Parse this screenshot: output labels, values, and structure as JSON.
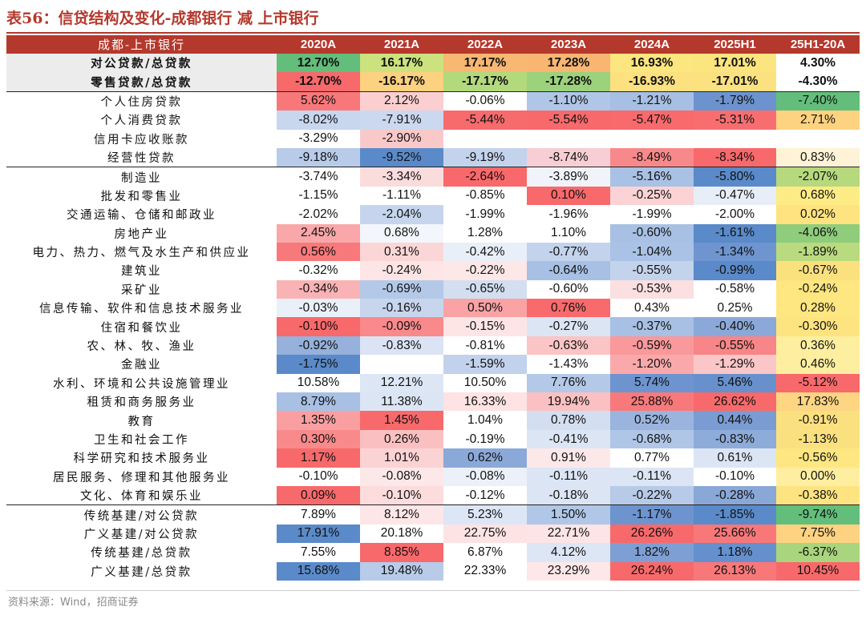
{
  "title": "表56：信贷结构及变化-成都银行 减 上市银行",
  "header": [
    "成都-上市银行",
    "2020A",
    "2021A",
    "2022A",
    "2023A",
    "2024A",
    "2025H1",
    "25H1-20A"
  ],
  "rows": [
    {
      "label": "对公贷款/总贷款",
      "values": [
        "12.70%",
        "16.17%",
        "17.17%",
        "17.28%",
        "16.93%",
        "17.01%",
        "4.30%"
      ],
      "colors": [
        "#63be7b",
        "#cbe27e",
        "#f8b772",
        "#f9b673",
        "#fce67f",
        "#fbe57f",
        "#ffffff"
      ],
      "summary": true
    },
    {
      "label": "零售贷款/总贷款",
      "values": [
        "-12.70%",
        "-16.17%",
        "-17.17%",
        "-17.28%",
        "-16.93%",
        "-17.01%",
        "-4.30%"
      ],
      "colors": [
        "#f8696b",
        "#fcd17f",
        "#b3d97d",
        "#9dd27c",
        "#fde07f",
        "#fce180",
        "#ffffff"
      ],
      "summary": true
    },
    {
      "label": "个人住房贷款",
      "values": [
        "5.62%",
        "2.12%",
        "-0.06%",
        "-1.10%",
        "-1.21%",
        "-1.79%",
        "-7.40%"
      ],
      "colors": [
        "#f8787a",
        "#fbcfd0",
        "#ffffff",
        "#b0c6e7",
        "#a6bfe3",
        "#6d93cf",
        "#63be7b"
      ],
      "sep": true
    },
    {
      "label": "个人消费贷款",
      "values": [
        "-8.02%",
        "-7.91%",
        "-5.44%",
        "-5.54%",
        "-5.47%",
        "-5.31%",
        "2.71%"
      ],
      "colors": [
        "#c8d6ee",
        "#cbd8ef",
        "#f86b6d",
        "#f8696b",
        "#f86a6c",
        "#f86e70",
        "#fdd280"
      ]
    },
    {
      "label": "信用卡应收账款",
      "values": [
        "-3.29%",
        "-2.90%",
        "",
        "",
        "",
        "",
        ""
      ],
      "colors": [
        "#ffffff",
        "#f9c9ca",
        "#ffffff",
        "#ffffff",
        "#ffffff",
        "#ffffff",
        "#ffffff"
      ]
    },
    {
      "label": "经营性贷款",
      "values": [
        "-9.18%",
        "-9.52%",
        "-9.19%",
        "-8.74%",
        "-8.49%",
        "-8.34%",
        "0.83%"
      ],
      "colors": [
        "#b8cbe9",
        "#5a8ac9",
        "#c4d3ec",
        "#f6ced3",
        "#f8898b",
        "#f8696b",
        "#fef3d6"
      ]
    },
    {
      "label": "制造业",
      "values": [
        "-3.74%",
        "-3.34%",
        "-2.64%",
        "-3.89%",
        "-5.16%",
        "-5.80%",
        "-2.07%"
      ],
      "colors": [
        "#ffffff",
        "#fbdcdd",
        "#f8696b",
        "#f0f4fa",
        "#a9c1e4",
        "#5a8ac9",
        "#b6d97d"
      ],
      "sep": true
    },
    {
      "label": "批发和零售业",
      "values": [
        "-1.15%",
        "-1.11%",
        "-0.85%",
        "0.10%",
        "-0.25%",
        "-0.47%",
        "0.68%"
      ],
      "colors": [
        "#ffffff",
        "#ffffff",
        "#ffffff",
        "#f8696b",
        "#fbd3d4",
        "#e8eef8",
        "#fdec85"
      ]
    },
    {
      "label": "交通运输、仓储和邮政业",
      "values": [
        "-2.02%",
        "-2.04%",
        "-1.99%",
        "-1.96%",
        "-1.99%",
        "-2.00%",
        "0.02%"
      ],
      "colors": [
        "#ffffff",
        "#c6d5ed",
        "#ffffff",
        "#ffffff",
        "#ffffff",
        "#ffffff",
        "#fee380"
      ]
    },
    {
      "label": "房地产业",
      "values": [
        "2.45%",
        "0.68%",
        "1.28%",
        "1.10%",
        "-0.60%",
        "-1.61%",
        "-4.06%"
      ],
      "colors": [
        "#f9a7a9",
        "#f3f6fb",
        "#ffffff",
        "#ffffff",
        "#a7c0e4",
        "#5a8ac9",
        "#8fcd7c"
      ]
    },
    {
      "label": "电力、热力、燃气及水生产和供应业",
      "values": [
        "0.56%",
        "0.31%",
        "-0.42%",
        "-0.77%",
        "-1.04%",
        "-1.34%",
        "-1.89%"
      ],
      "colors": [
        "#f8797b",
        "#fbd6d7",
        "#e9eff8",
        "#c3d3ec",
        "#aac2e5",
        "#6f95d0",
        "#b9da7e"
      ]
    },
    {
      "label": "建筑业",
      "values": [
        "-0.32%",
        "-0.24%",
        "-0.22%",
        "-0.64%",
        "-0.55%",
        "-0.99%",
        "-0.67%"
      ],
      "colors": [
        "#ffffff",
        "#fde5e6",
        "#fde7e7",
        "#a7c0e4",
        "#c4d3ec",
        "#5a8ac9",
        "#fbe07e"
      ]
    },
    {
      "label": "采矿业",
      "values": [
        "-0.34%",
        "-0.69%",
        "-0.65%",
        "-0.60%",
        "-0.53%",
        "-0.58%",
        "-0.24%"
      ],
      "colors": [
        "#fab3b4",
        "#b4c9e8",
        "#d3def1",
        "#ffffff",
        "#fcdfe0",
        "#ffffff",
        "#fee681"
      ]
    },
    {
      "label": "信息传输、软件和信息技术服务业",
      "values": [
        "-0.03%",
        "-0.16%",
        "0.50%",
        "0.76%",
        "0.43%",
        "0.25%",
        "0.28%"
      ],
      "colors": [
        "#eaf0f8",
        "#c7d6ed",
        "#f9a3a5",
        "#f86a6c",
        "#ffffff",
        "#ffffff",
        "#fee681"
      ]
    },
    {
      "label": "住宿和餐饮业",
      "values": [
        "-0.10%",
        "-0.09%",
        "-0.15%",
        "-0.27%",
        "-0.37%",
        "-0.40%",
        "-0.30%"
      ],
      "colors": [
        "#f8696b",
        "#f9898b",
        "#fde5e6",
        "#dce5f4",
        "#a8c0e4",
        "#8ba9d8",
        "#fee481"
      ]
    },
    {
      "label": "农、林、牧、渔业",
      "values": [
        "-0.92%",
        "-0.83%",
        "-0.81%",
        "-0.63%",
        "-0.59%",
        "-0.55%",
        "0.36%"
      ],
      "colors": [
        "#95b1dc",
        "#dbe4f4",
        "#ffffff",
        "#fbc4c5",
        "#f9999b",
        "#f88587",
        "#feee9f"
      ]
    },
    {
      "label": "金融业",
      "values": [
        "-1.75%",
        "",
        "-1.59%",
        "-1.43%",
        "-1.20%",
        "-1.29%",
        "0.46%"
      ],
      "colors": [
        "#5a8ac9",
        "#ffffff",
        "#c2d2ec",
        "#ffffff",
        "#faa9ab",
        "#fbc6c7",
        "#feeea0"
      ]
    },
    {
      "label": "水利、环境和公共设施管理业",
      "values": [
        "10.58%",
        "12.21%",
        "10.50%",
        "7.76%",
        "5.74%",
        "5.46%",
        "-5.12%"
      ],
      "colors": [
        "#ffffff",
        "#dde6f5",
        "#ffffff",
        "#b4c9e8",
        "#6e94cf",
        "#6790cd",
        "#f8696b"
      ]
    },
    {
      "label": "租赁和商务服务业",
      "values": [
        "8.79%",
        "11.38%",
        "16.33%",
        "19.94%",
        "25.88%",
        "26.62%",
        "17.83%"
      ],
      "colors": [
        "#a8c0e4",
        "#dce5f4",
        "#fde3e4",
        "#fbc1c2",
        "#f8797b",
        "#f8696b",
        "#fed582"
      ]
    },
    {
      "label": "教育",
      "values": [
        "1.35%",
        "1.45%",
        "1.04%",
        "0.78%",
        "0.52%",
        "0.44%",
        "-0.91%"
      ],
      "colors": [
        "#fa9fa1",
        "#f8696b",
        "#ffffff",
        "#d3def1",
        "#9ab4dd",
        "#7a9cd3",
        "#fbe07f"
      ]
    },
    {
      "label": "卫生和社会工作",
      "values": [
        "0.30%",
        "0.26%",
        "-0.19%",
        "-0.41%",
        "-0.68%",
        "-0.83%",
        "-1.13%"
      ],
      "colors": [
        "#f98a8c",
        "#fac0c1",
        "#ffffff",
        "#dce5f4",
        "#b0c6e7",
        "#8eacda",
        "#fbe07f"
      ]
    },
    {
      "label": "科学研究和技术服务业",
      "values": [
        "1.17%",
        "1.01%",
        "0.62%",
        "0.91%",
        "0.77%",
        "0.61%",
        "-0.56%"
      ],
      "colors": [
        "#f8696b",
        "#fcd3d4",
        "#8ba9d8",
        "#fde8e9",
        "#ffffff",
        "#dce5f4",
        "#fee782"
      ]
    },
    {
      "label": "居民服务、修理和其他服务业",
      "values": [
        "-0.10%",
        "-0.08%",
        "-0.08%",
        "-0.11%",
        "-0.11%",
        "-0.10%",
        "0.00%"
      ],
      "colors": [
        "#ffffff",
        "#fde8e9",
        "#ecf1f9",
        "#dce5f4",
        "#dce5f4",
        "#ffffff",
        "#feeea0"
      ]
    },
    {
      "label": "文化、体育和娱乐业",
      "values": [
        "0.09%",
        "-0.10%",
        "-0.12%",
        "-0.18%",
        "-0.22%",
        "-0.28%",
        "-0.38%"
      ],
      "colors": [
        "#f8696b",
        "#fcdcdd",
        "#ffffff",
        "#dce5f4",
        "#b7cae8",
        "#89a8d8",
        "#fee481"
      ]
    },
    {
      "label": "传统基建/对公贷款",
      "values": [
        "7.89%",
        "8.12%",
        "5.23%",
        "1.50%",
        "-1.17%",
        "-1.85%",
        "-9.74%"
      ],
      "colors": [
        "#ffffff",
        "#fde6e7",
        "#dde6f5",
        "#b1c7e7",
        "#6e94cf",
        "#5a8ac9",
        "#63be7b"
      ],
      "sep": true
    },
    {
      "label": "广义基建/对公贷款",
      "values": [
        "17.91%",
        "20.18%",
        "22.75%",
        "22.71%",
        "26.26%",
        "25.66%",
        "7.75%"
      ],
      "colors": [
        "#5a8ac9",
        "#ffffff",
        "#fde3e4",
        "#fde4e5",
        "#f8696b",
        "#f8787a",
        "#fdd281"
      ]
    },
    {
      "label": "传统基建/总贷款",
      "values": [
        "7.55%",
        "8.85%",
        "6.87%",
        "4.12%",
        "1.82%",
        "1.18%",
        "-6.37%"
      ],
      "colors": [
        "#ffffff",
        "#f8696b",
        "#ffffff",
        "#dde6f5",
        "#7e9fd4",
        "#6590cd",
        "#a8d57d"
      ]
    },
    {
      "label": "广义基建/总贷款",
      "values": [
        "15.68%",
        "19.48%",
        "22.33%",
        "23.29%",
        "26.24%",
        "26.13%",
        "10.45%"
      ],
      "colors": [
        "#5a8ac9",
        "#b8cbe9",
        "#ffffff",
        "#fde7e8",
        "#f8696b",
        "#f8787a",
        "#f8696b"
      ]
    }
  ],
  "source": "资料来源：Wind，招商证券"
}
